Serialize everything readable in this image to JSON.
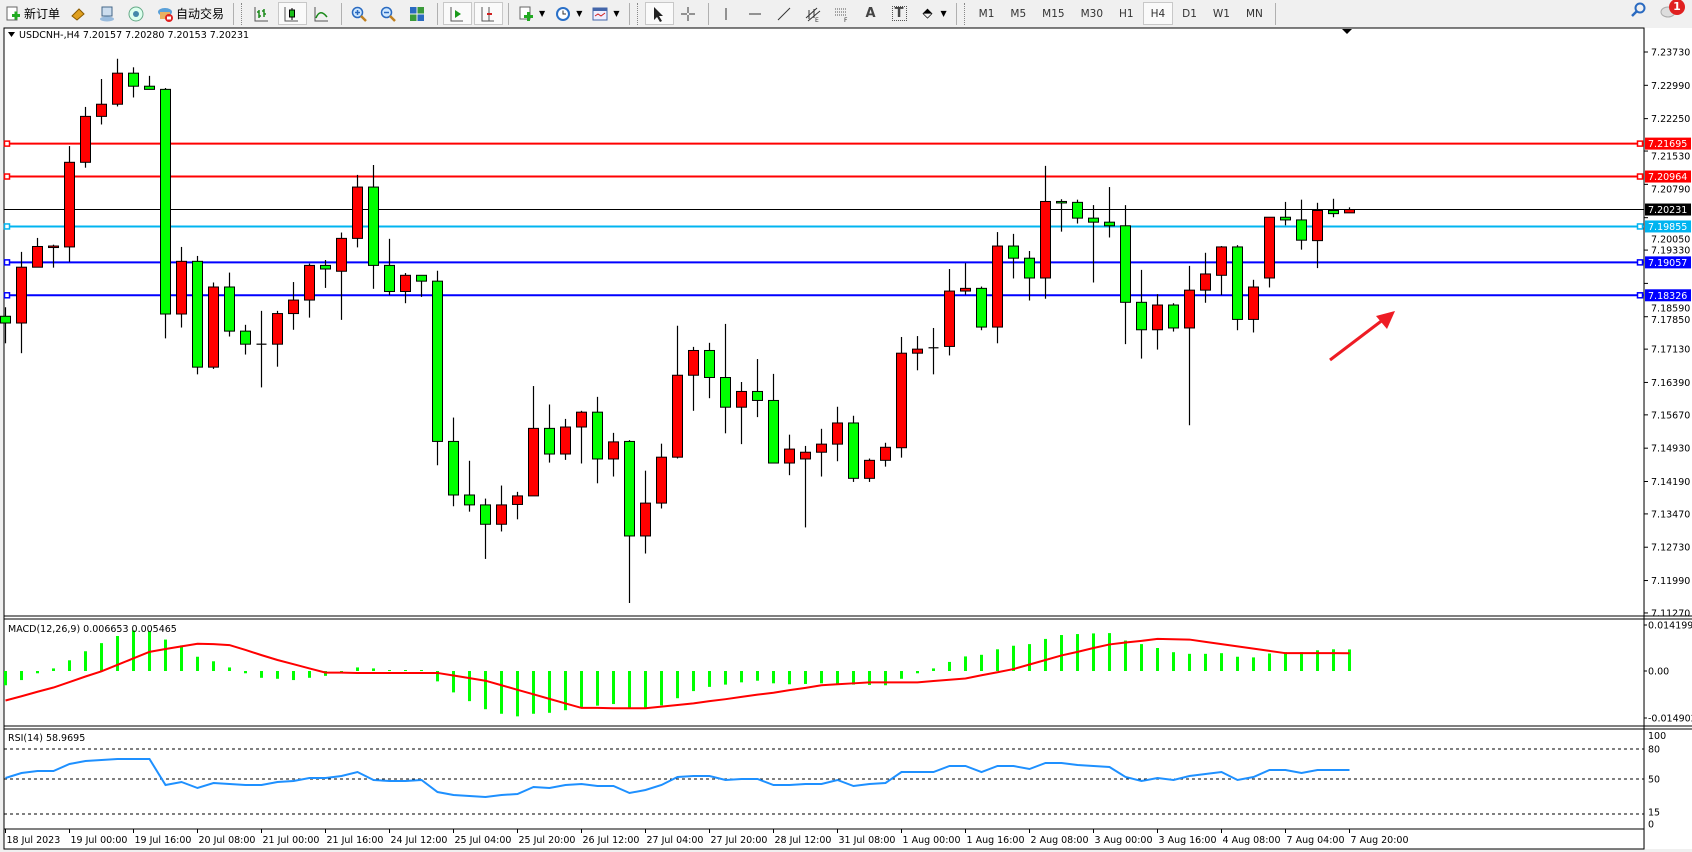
{
  "toolbar": {
    "new_order_label": "新订单",
    "auto_trading_label": "自动交易",
    "icons": [
      "new-order-icon",
      "market-watch-icon",
      "navigator-icon",
      "signals-icon",
      "auto-trading-icon",
      "bar-chart-icon",
      "candlestick-icon",
      "line-chart-icon",
      "zoom-in-icon",
      "zoom-out-icon",
      "tile-windows-icon",
      "auto-scroll-icon",
      "chart-shift-icon",
      "new-chart-icon",
      "periods-clock-icon",
      "template-icon",
      "cursor-icon",
      "crosshair-icon",
      "vertical-line-icon",
      "horizontal-line-icon",
      "trendline-icon",
      "equidistant-channel-icon",
      "fibonacci-icon",
      "text-icon",
      "text-label-icon",
      "arrows-icon"
    ],
    "text_tool": "A",
    "label_tool": "T",
    "timeframes": [
      "M1",
      "M5",
      "M15",
      "M30",
      "H1",
      "H4",
      "D1",
      "W1",
      "MN"
    ],
    "active_timeframe": "H4",
    "notification_count": "1"
  },
  "chart": {
    "header": "USDCNH-,H4  7.20157 7.20280 7.20153 7.20231",
    "bull_color": "#ff0000",
    "bear_color": "#00ff00",
    "price_ticks": [
      "7.23730",
      "7.22990",
      "7.22250",
      "7.21530",
      "7.20790",
      "7.20050",
      "7.19330",
      "7.18590",
      "7.17850",
      "7.17130",
      "7.16390",
      "7.15670",
      "7.14930",
      "7.14190",
      "7.13470",
      "7.12730",
      "7.11990",
      "7.11270"
    ],
    "current_price": {
      "value": "7.20231",
      "color": "#000000"
    },
    "hlines": [
      {
        "value": "7.21695",
        "color": "#ff0000"
      },
      {
        "value": "7.20964",
        "color": "#ff0000"
      },
      {
        "value": "7.19855",
        "color": "#00b4f0"
      },
      {
        "value": "7.19057",
        "color": "#0000ff"
      },
      {
        "value": "7.18326",
        "color": "#0000ff"
      }
    ],
    "arrow_color": "#ee1c24",
    "time_labels": [
      {
        "i": 0,
        "t": "18 Jul 2023"
      },
      {
        "i": 4,
        "t": "19 Jul 00:00"
      },
      {
        "i": 8,
        "t": "19 Jul 16:00"
      },
      {
        "i": 12,
        "t": "20 Jul 08:00"
      },
      {
        "i": 16,
        "t": "21 Jul 00:00"
      },
      {
        "i": 20,
        "t": "21 Jul 16:00"
      },
      {
        "i": 24,
        "t": "24 Jul 12:00"
      },
      {
        "i": 28,
        "t": "25 Jul 04:00"
      },
      {
        "i": 32,
        "t": "25 Jul 20:00"
      },
      {
        "i": 36,
        "t": "26 Jul 12:00"
      },
      {
        "i": 40,
        "t": "27 Jul 04:00"
      },
      {
        "i": 44,
        "t": "27 Jul 20:00"
      },
      {
        "i": 48,
        "t": "28 Jul 12:00"
      },
      {
        "i": 52,
        "t": "31 Jul 08:00"
      },
      {
        "i": 56,
        "t": "1 Aug 00:00"
      },
      {
        "i": 60,
        "t": "1 Aug 16:00"
      },
      {
        "i": 64,
        "t": "2 Aug 08:00"
      },
      {
        "i": 68,
        "t": "3 Aug 00:00"
      },
      {
        "i": 72,
        "t": "3 Aug 16:00"
      },
      {
        "i": 76,
        "t": "4 Aug 08:00"
      },
      {
        "i": 80,
        "t": "7 Aug 04:00"
      },
      {
        "i": 84,
        "t": "7 Aug 20:00"
      }
    ]
  },
  "macd": {
    "header": "MACD(12,26,9) 0.006653 0.005465",
    "ticks": [
      "0.014199",
      "0.00",
      "-0.014902"
    ],
    "hist_color": "#00ff00",
    "signal_color": "#ff0000"
  },
  "rsi": {
    "header": "RSI(14) 58.9695",
    "ticks": [
      "100",
      "80",
      "50",
      "15",
      "0"
    ],
    "levels": [
      80,
      50,
      15
    ],
    "line_color": "#1e90ff"
  },
  "chart_data": {
    "type": "candlestick",
    "symbol": "USDCNH-",
    "timeframe": "H4",
    "ohlc": [
      [
        7.1786,
        7.1806,
        7.1726,
        7.1771
      ],
      [
        7.1771,
        7.1929,
        7.1704,
        7.1895
      ],
      [
        7.1895,
        7.196,
        7.1895,
        7.1941
      ],
      [
        7.1941,
        7.1945,
        7.1894,
        7.1942
      ],
      [
        7.194,
        7.2164,
        7.1907,
        7.2128
      ],
      [
        7.2128,
        7.2251,
        7.2116,
        7.223
      ],
      [
        7.223,
        7.2313,
        7.2212,
        7.2257
      ],
      [
        7.2257,
        7.2358,
        7.2252,
        7.2326
      ],
      [
        7.2326,
        7.2339,
        7.2272,
        7.2297
      ],
      [
        7.2297,
        7.232,
        7.229,
        7.229
      ],
      [
        7.229,
        7.2293,
        7.1737,
        7.1791
      ],
      [
        7.1791,
        7.194,
        7.1761,
        7.1908
      ],
      [
        7.1908,
        7.192,
        7.1657,
        7.1673
      ],
      [
        7.1673,
        7.1861,
        7.1669,
        7.1851
      ],
      [
        7.1851,
        7.1883,
        7.1741,
        7.1753
      ],
      [
        7.1753,
        7.1767,
        7.1701,
        7.1724
      ],
      [
        7.1724,
        7.1798,
        7.1628,
        7.1724
      ],
      [
        7.1724,
        7.1798,
        7.1674,
        7.1792
      ],
      [
        7.1792,
        7.1862,
        7.1756,
        7.1822
      ],
      [
        7.1822,
        7.1903,
        7.1783,
        7.1899
      ],
      [
        7.1899,
        7.1911,
        7.1849,
        7.1891
      ],
      [
        7.1886,
        7.1972,
        7.1778,
        7.1959
      ],
      [
        7.1959,
        7.21,
        7.1939,
        7.2073
      ],
      [
        7.2073,
        7.2122,
        7.1847,
        7.1899
      ],
      [
        7.1899,
        7.1958,
        7.1833,
        7.1841
      ],
      [
        7.1841,
        7.1882,
        7.1815,
        7.1877
      ],
      [
        7.1877,
        7.1877,
        7.1829,
        7.1864
      ],
      [
        7.1864,
        7.1887,
        7.1455,
        7.1508
      ],
      [
        7.1508,
        7.1561,
        7.1364,
        7.1389
      ],
      [
        7.1389,
        7.1465,
        7.1352,
        7.1367
      ],
      [
        7.1367,
        7.1381,
        7.1247,
        7.1324
      ],
      [
        7.1324,
        7.141,
        7.1308,
        7.1367
      ],
      [
        7.1368,
        7.1396,
        7.1335,
        7.1387
      ],
      [
        7.1387,
        7.1631,
        7.1387,
        7.1537
      ],
      [
        7.1537,
        7.159,
        7.1461,
        7.148
      ],
      [
        7.148,
        7.1558,
        7.1467,
        7.154
      ],
      [
        7.154,
        7.1576,
        7.1459,
        7.1573
      ],
      [
        7.1573,
        7.1607,
        7.1415,
        7.1469
      ],
      [
        7.1469,
        7.1527,
        7.143,
        7.1507
      ],
      [
        7.1508,
        7.1511,
        7.1149,
        7.1298
      ],
      [
        7.1298,
        7.1443,
        7.1259,
        7.1371
      ],
      [
        7.1371,
        7.1503,
        7.1359,
        7.1473
      ],
      [
        7.1473,
        7.1765,
        7.147,
        7.1655
      ],
      [
        7.1655,
        7.1718,
        7.1576,
        7.171
      ],
      [
        7.171,
        7.1727,
        7.1604,
        7.165
      ],
      [
        7.165,
        7.1769,
        7.1526,
        7.1584
      ],
      [
        7.1584,
        7.164,
        7.1502,
        7.1619
      ],
      [
        7.1619,
        7.1691,
        7.1562,
        7.1599
      ],
      [
        7.1599,
        7.1658,
        7.146,
        7.146
      ],
      [
        7.146,
        7.1523,
        7.1433,
        7.1491
      ],
      [
        7.1469,
        7.1498,
        7.1317,
        7.1484
      ],
      [
        7.1484,
        7.1536,
        7.143,
        7.1502
      ],
      [
        7.1502,
        7.1585,
        7.1464,
        7.1549
      ],
      [
        7.1549,
        7.1565,
        7.1418,
        7.1426
      ],
      [
        7.1426,
        7.147,
        7.1418,
        7.1466
      ],
      [
        7.1466,
        7.1505,
        7.1452,
        7.1495
      ],
      [
        7.1494,
        7.174,
        7.1472,
        7.1704
      ],
      [
        7.1704,
        7.1742,
        7.1666,
        7.1713
      ],
      [
        7.1716,
        7.176,
        7.1657,
        7.1716
      ],
      [
        7.1719,
        7.1891,
        7.1699,
        7.1842
      ],
      [
        7.1842,
        7.1904,
        7.1834,
        7.1848
      ],
      [
        7.1848,
        7.1852,
        7.1755,
        7.1762
      ],
      [
        7.1762,
        7.1973,
        7.1726,
        7.1942
      ],
      [
        7.1942,
        7.1969,
        7.187,
        7.1915
      ],
      [
        7.1915,
        7.1931,
        7.1821,
        7.1871
      ],
      [
        7.1871,
        7.212,
        7.1825,
        7.2041
      ],
      [
        7.2041,
        7.2046,
        7.1974,
        7.204
      ],
      [
        7.2039,
        7.2045,
        7.1992,
        7.2004
      ],
      [
        7.2004,
        7.2033,
        7.1861,
        7.1995
      ],
      [
        7.1995,
        7.2073,
        7.1961,
        7.1987
      ],
      [
        7.1987,
        7.2033,
        7.1724,
        7.1817
      ],
      [
        7.1817,
        7.1889,
        7.1692,
        7.1756
      ],
      [
        7.1756,
        7.1835,
        7.1712,
        7.1811
      ],
      [
        7.1811,
        7.1815,
        7.1752,
        7.176
      ],
      [
        7.176,
        7.1898,
        7.1544,
        7.1844
      ],
      [
        7.1844,
        7.1927,
        7.1816,
        7.188
      ],
      [
        7.1877,
        7.1942,
        7.1833,
        7.194
      ],
      [
        7.194,
        7.1944,
        7.1755,
        7.1779
      ],
      [
        7.1779,
        7.1867,
        7.175,
        7.1851
      ],
      [
        7.1871,
        7.2006,
        7.185,
        7.2006
      ],
      [
        7.2006,
        7.204,
        7.1988,
        7.2
      ],
      [
        7.2,
        7.2045,
        7.1934,
        7.1955
      ],
      [
        7.1954,
        7.2038,
        7.1893,
        7.2021
      ],
      [
        7.2021,
        7.2047,
        7.2006,
        7.2014
      ],
      [
        7.20157,
        7.2028,
        7.20153,
        7.20231
      ]
    ],
    "price_range": [
      7.1127,
      7.2373
    ],
    "macd_hist": [
      -0.0044,
      -0.0028,
      -0.0007,
      0.0008,
      0.0033,
      0.0061,
      0.0086,
      0.0108,
      0.0125,
      0.0122,
      0.0097,
      0.0079,
      0.0044,
      0.003,
      0.0011,
      -0.0007,
      -0.0021,
      -0.0024,
      -0.0028,
      -0.0021,
      -0.0015,
      -0.0001,
      0.0011,
      0.0008,
      0.0003,
      0.0003,
      0.0003,
      -0.0032,
      -0.0066,
      -0.0093,
      -0.0118,
      -0.0132,
      -0.014,
      -0.0132,
      -0.0129,
      -0.0121,
      -0.0111,
      -0.0107,
      -0.0102,
      -0.0115,
      -0.0115,
      -0.0106,
      -0.0084,
      -0.0062,
      -0.0049,
      -0.0042,
      -0.0035,
      -0.003,
      -0.0038,
      -0.0041,
      -0.004,
      -0.0038,
      -0.004,
      -0.0042,
      -0.0043,
      -0.0044,
      -0.0024,
      -0.0007,
      0.0008,
      0.0028,
      0.0045,
      0.005,
      0.0067,
      0.0078,
      0.0083,
      0.0099,
      0.0111,
      0.0114,
      0.0116,
      0.0117,
      0.0094,
      0.0083,
      0.0071,
      0.0058,
      0.0053,
      0.0053,
      0.0055,
      0.0044,
      0.0042,
      0.0054,
      0.0058,
      0.0058,
      0.0064,
      0.0067,
      0.006653
    ],
    "macd_signal": [
      -0.0091,
      -0.0078,
      -0.0064,
      -0.0051,
      -0.0034,
      -0.0017,
      -0.0001,
      0.0019,
      0.0039,
      0.0059,
      0.0068,
      0.0076,
      0.0084,
      0.0083,
      0.008,
      0.0065,
      0.0049,
      0.0034,
      0.0021,
      0.0008,
      -0.0005,
      -0.0005,
      -0.0006,
      -0.0006,
      -0.0006,
      -0.0006,
      -0.0006,
      -0.0006,
      -0.0014,
      -0.0022,
      -0.003,
      -0.0044,
      -0.0058,
      -0.0072,
      -0.0086,
      -0.01,
      -0.0114,
      -0.0114,
      -0.0115,
      -0.0115,
      -0.0115,
      -0.011,
      -0.0105,
      -0.01,
      -0.0093,
      -0.0087,
      -0.008,
      -0.0073,
      -0.0067,
      -0.0059,
      -0.0052,
      -0.0044,
      -0.0041,
      -0.0038,
      -0.0035,
      -0.0035,
      -0.0035,
      -0.0035,
      -0.0031,
      -0.0027,
      -0.0023,
      -0.0013,
      -0.0004,
      0.0006,
      0.002,
      0.0034,
      0.0048,
      0.0059,
      0.0071,
      0.0082,
      0.0088,
      0.0093,
      0.0099,
      0.0098,
      0.0097,
      0.009,
      0.0083,
      0.0076,
      0.0069,
      0.0062,
      0.0055,
      0.0055,
      0.0055,
      0.0055,
      0.005465
    ],
    "macd_range": [
      -0.014902,
      0.014199
    ],
    "rsi": [
      51,
      56,
      58,
      58,
      65,
      68,
      69,
      70,
      70,
      70,
      44,
      47,
      41,
      46,
      45,
      44,
      44,
      47,
      48,
      51,
      51,
      53,
      57,
      49,
      48,
      48,
      49,
      37,
      34,
      33,
      32,
      34,
      35,
      42,
      41,
      44,
      45,
      43,
      43,
      36,
      39,
      44,
      52,
      53,
      53,
      49,
      50,
      50,
      44,
      44,
      45,
      45,
      49,
      43,
      45,
      46,
      57,
      57,
      57,
      63,
      63,
      57,
      63,
      63,
      60,
      66,
      66,
      64,
      63,
      62,
      52,
      48,
      51,
      49,
      53,
      55,
      57,
      49,
      52,
      59,
      59,
      56,
      59,
      59,
      58.9695
    ],
    "rsi_range": [
      0,
      100
    ]
  }
}
